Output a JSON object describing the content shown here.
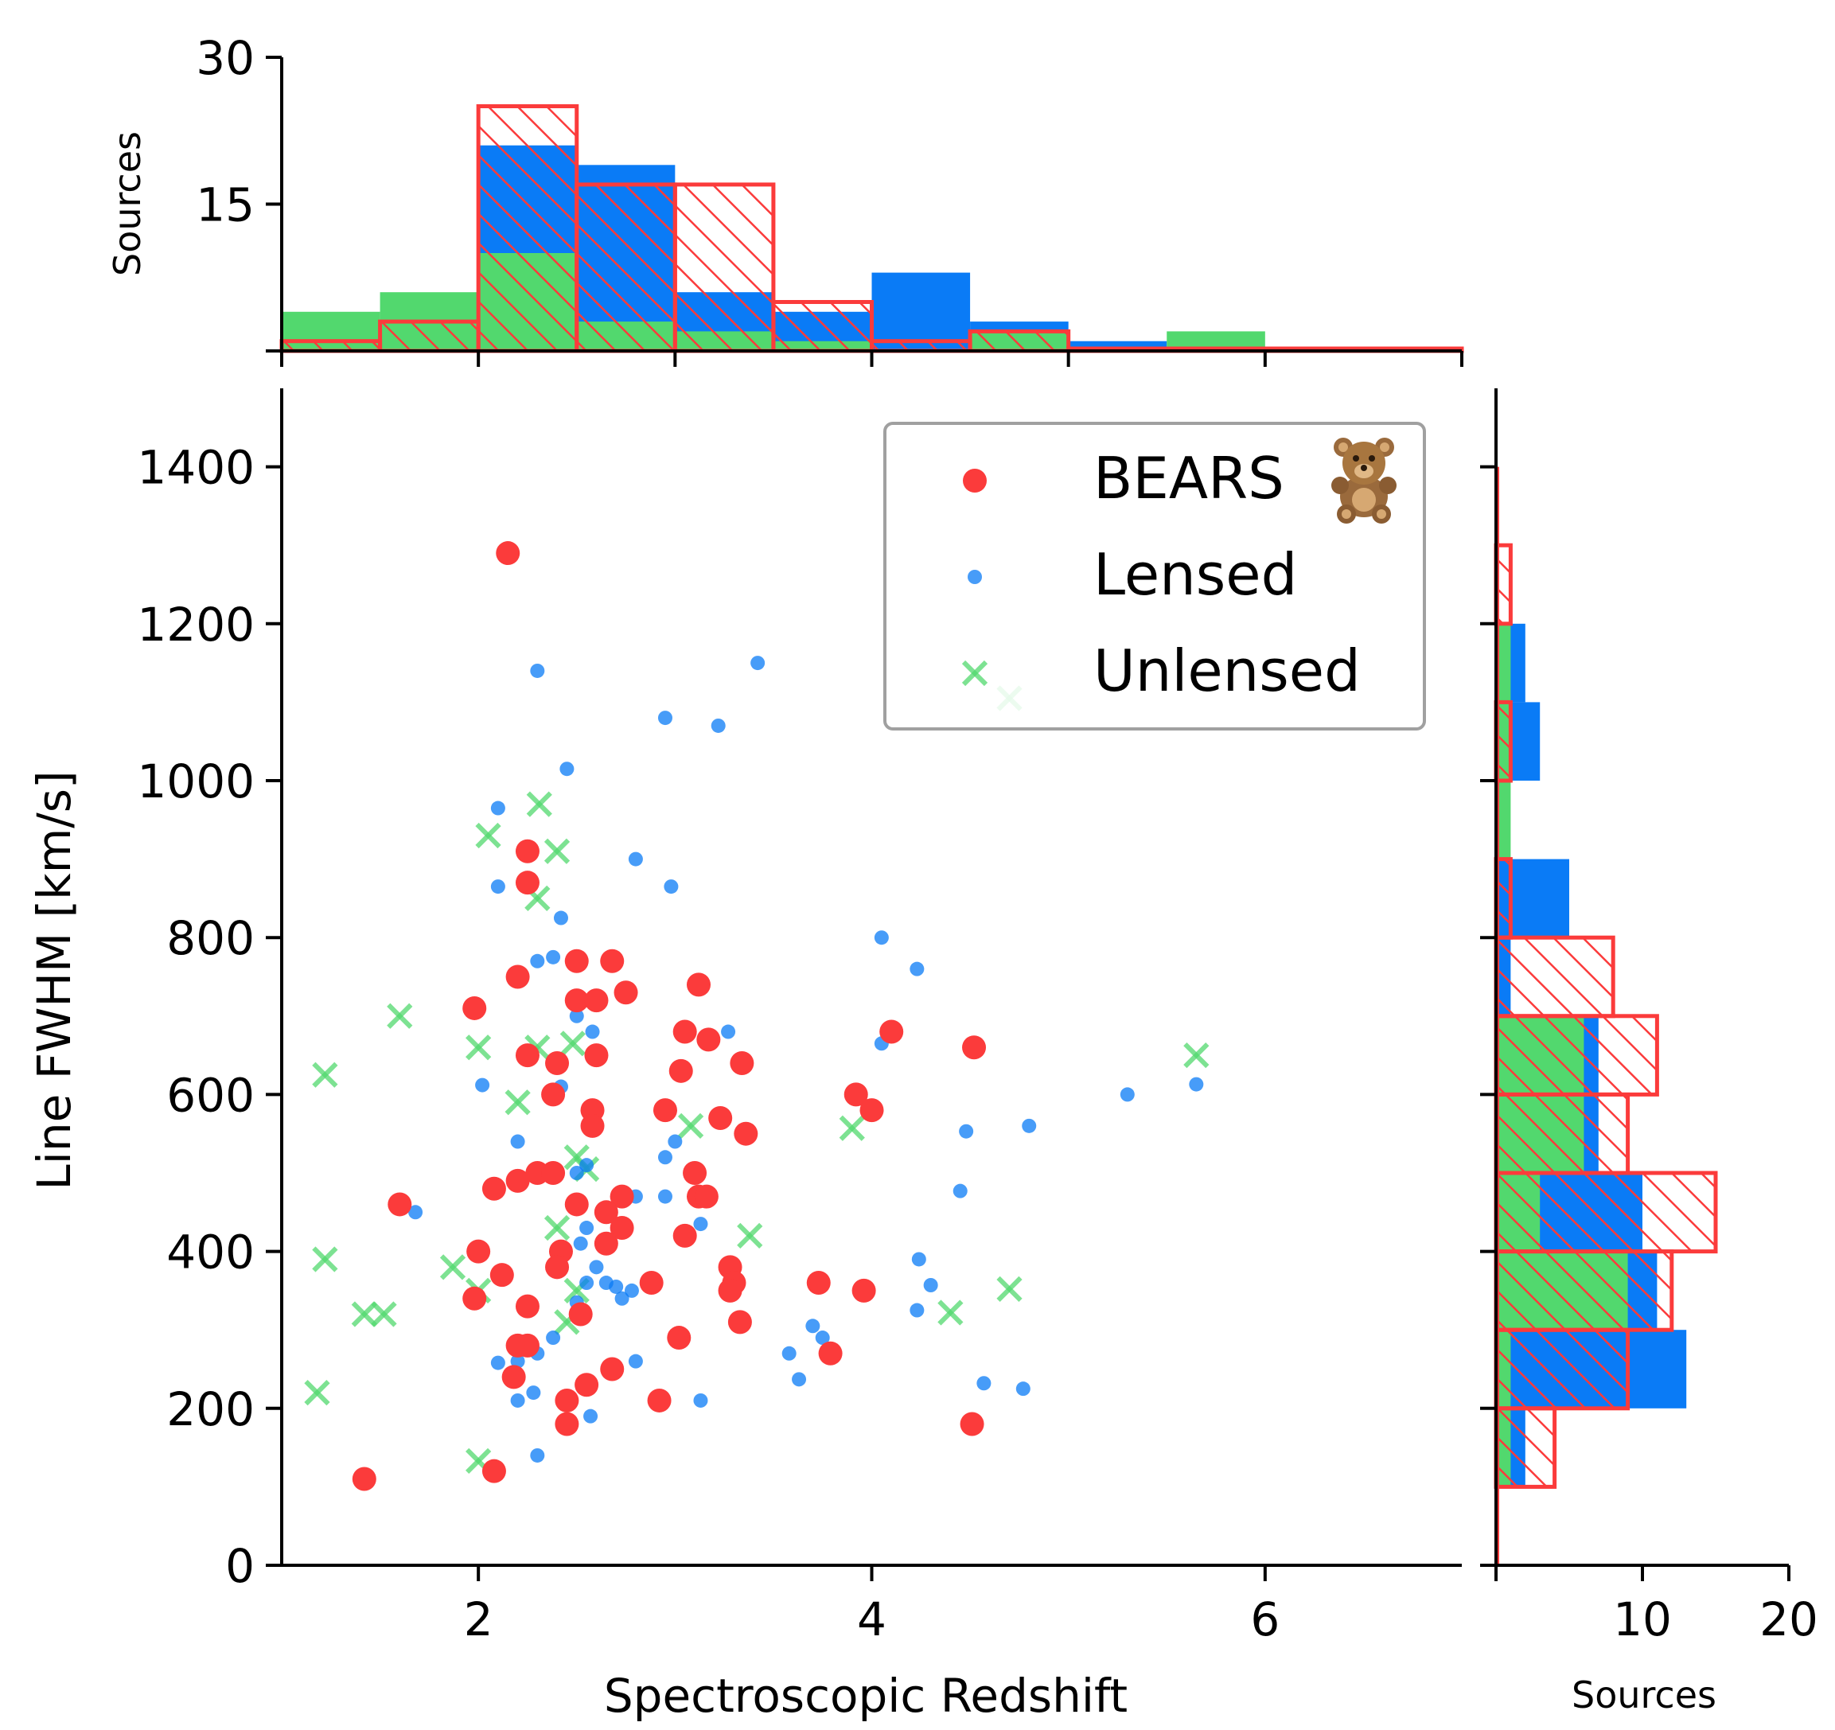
{
  "colors": {
    "bears": "#fb3b3b",
    "lensed": "#0a7bf6",
    "unlensed": "#52d86e",
    "legend_border": "#a0a0a0"
  },
  "chart_data": [
    {
      "id": "scatter",
      "type": "scatter",
      "xlabel": "Spectroscopic Redshift",
      "ylabel": "Line FWHM [km/s]",
      "xlim": [
        1.0,
        7.0
      ],
      "ylim": [
        0,
        1500
      ],
      "xticks": [
        2,
        4,
        6
      ],
      "yticks": [
        0,
        200,
        400,
        600,
        800,
        1000,
        1200,
        1400
      ],
      "legend": {
        "position": "top-right"
      },
      "series": [
        {
          "name": "BEARS",
          "marker": "circle-large",
          "icon": "teddy-bear-icon",
          "points": [
            [
              2.15,
              1290
            ],
            [
              1.42,
              110
            ],
            [
              2.08,
              120
            ],
            [
              2.25,
              910
            ],
            [
              2.25,
              870
            ],
            [
              2.2,
              750
            ],
            [
              1.98,
              710
            ],
            [
              2.08,
              480
            ],
            [
              2.25,
              650
            ],
            [
              2.4,
              640
            ],
            [
              2.38,
              600
            ],
            [
              2.5,
              770
            ],
            [
              2.68,
              770
            ],
            [
              2.5,
              720
            ],
            [
              2.6,
              720
            ],
            [
              2.75,
              730
            ],
            [
              2.6,
              650
            ],
            [
              2.58,
              580
            ],
            [
              2.58,
              560
            ],
            [
              2.3,
              500
            ],
            [
              2.38,
              500
            ],
            [
              2.2,
              490
            ],
            [
              2.5,
              460
            ],
            [
              2.73,
              470
            ],
            [
              2.65,
              450
            ],
            [
              2.42,
              400
            ],
            [
              2.4,
              380
            ],
            [
              2.73,
              430
            ],
            [
              2.65,
              410
            ],
            [
              2.0,
              400
            ],
            [
              2.12,
              370
            ],
            [
              1.98,
              340
            ],
            [
              1.6,
              460
            ],
            [
              2.25,
              330
            ],
            [
              2.2,
              280
            ],
            [
              2.25,
              280
            ],
            [
              2.18,
              240
            ],
            [
              2.45,
              210
            ],
            [
              2.45,
              180
            ],
            [
              2.52,
              320
            ],
            [
              2.55,
              230
            ],
            [
              2.68,
              250
            ],
            [
              2.92,
              210
            ],
            [
              2.88,
              360
            ],
            [
              3.02,
              290
            ],
            [
              3.12,
              740
            ],
            [
              3.05,
              680
            ],
            [
              3.17,
              670
            ],
            [
              3.34,
              640
            ],
            [
              3.03,
              630
            ],
            [
              2.95,
              580
            ],
            [
              3.23,
              570
            ],
            [
              3.36,
              550
            ],
            [
              3.1,
              500
            ],
            [
              3.12,
              470
            ],
            [
              3.16,
              470
            ],
            [
              3.05,
              420
            ],
            [
              3.28,
              380
            ],
            [
              3.3,
              360
            ],
            [
              3.28,
              350
            ],
            [
              3.33,
              310
            ],
            [
              3.73,
              360
            ],
            [
              3.79,
              270
            ],
            [
              3.96,
              350
            ],
            [
              3.92,
              600
            ],
            [
              4.0,
              580
            ],
            [
              4.1,
              680
            ],
            [
              4.52,
              660
            ],
            [
              4.51,
              180
            ]
          ]
        },
        {
          "name": "Lensed",
          "marker": "circle-small",
          "points": [
            [
              2.3,
              1140
            ],
            [
              3.42,
              1150
            ],
            [
              2.95,
              1080
            ],
            [
              3.22,
              1070
            ],
            [
              2.45,
              1015
            ],
            [
              2.1,
              965
            ],
            [
              2.8,
              900
            ],
            [
              2.98,
              865
            ],
            [
              2.1,
              865
            ],
            [
              2.42,
              825
            ],
            [
              2.3,
              770
            ],
            [
              2.38,
              775
            ],
            [
              4.05,
              800
            ],
            [
              4.23,
              760
            ],
            [
              2.5,
              700
            ],
            [
              2.58,
              680
            ],
            [
              3.27,
              680
            ],
            [
              4.05,
              665
            ],
            [
              2.42,
              610
            ],
            [
              2.02,
              612
            ],
            [
              2.2,
              540
            ],
            [
              3.0,
              540
            ],
            [
              2.95,
              520
            ],
            [
              2.55,
              510
            ],
            [
              2.5,
              500
            ],
            [
              2.8,
              470
            ],
            [
              2.95,
              470
            ],
            [
              3.13,
              435
            ],
            [
              2.55,
              430
            ],
            [
              2.52,
              410
            ],
            [
              2.6,
              380
            ],
            [
              2.55,
              360
            ],
            [
              2.65,
              360
            ],
            [
              2.7,
              355
            ],
            [
              2.78,
              350
            ],
            [
              2.73,
              340
            ],
            [
              2.5,
              335
            ],
            [
              2.38,
              290
            ],
            [
              2.3,
              270
            ],
            [
              2.2,
              260
            ],
            [
              2.1,
              258
            ],
            [
              2.28,
              220
            ],
            [
              2.2,
              210
            ],
            [
              2.57,
              190
            ],
            [
              2.3,
              140
            ],
            [
              2.8,
              260
            ],
            [
              3.13,
              210
            ],
            [
              3.58,
              270
            ],
            [
              3.63,
              237
            ],
            [
              3.7,
              305
            ],
            [
              3.75,
              290
            ],
            [
              4.24,
              390
            ],
            [
              4.3,
              357
            ],
            [
              4.23,
              325
            ],
            [
              4.45,
              477
            ],
            [
              4.48,
              553
            ],
            [
              4.8,
              560
            ],
            [
              4.57,
              232
            ],
            [
              4.77,
              225
            ],
            [
              5.3,
              600
            ],
            [
              1.68,
              450
            ],
            [
              5.65,
              613
            ]
          ]
        },
        {
          "name": "Unlensed",
          "marker": "x",
          "points": [
            [
              2.31,
              970
            ],
            [
              2.05,
              930
            ],
            [
              2.4,
              910
            ],
            [
              2.3,
              850
            ],
            [
              1.6,
              700
            ],
            [
              2.0,
              660
            ],
            [
              2.3,
              660
            ],
            [
              2.48,
              665
            ],
            [
              1.22,
              625
            ],
            [
              2.2,
              590
            ],
            [
              3.08,
              560
            ],
            [
              3.9,
              557
            ],
            [
              2.5,
              520
            ],
            [
              2.55,
              505
            ],
            [
              2.4,
              430
            ],
            [
              3.38,
              420
            ],
            [
              1.22,
              390
            ],
            [
              1.87,
              380
            ],
            [
              2.0,
              350
            ],
            [
              2.5,
              350
            ],
            [
              1.42,
              320
            ],
            [
              1.52,
              320
            ],
            [
              2.45,
              310
            ],
            [
              4.4,
              322
            ],
            [
              4.7,
              352
            ],
            [
              1.18,
              220
            ],
            [
              2.0,
              133
            ],
            [
              5.65,
              650
            ],
            [
              4.7,
              1105
            ]
          ]
        }
      ]
    },
    {
      "id": "top-histogram",
      "type": "bar",
      "ylabel": "Sources",
      "xlim": [
        1.0,
        7.0
      ],
      "ylim": [
        0,
        30
      ],
      "yticks": [
        15,
        30
      ],
      "bin_edges": [
        1.0,
        1.5,
        2.0,
        2.5,
        3.0,
        3.5,
        4.0,
        4.5,
        5.0,
        5.5,
        6.0,
        6.5,
        7.0
      ],
      "series": [
        {
          "name": "Unlensed",
          "values": [
            4,
            6,
            10,
            3,
            2,
            1,
            0,
            2,
            0,
            2,
            0,
            0
          ]
        },
        {
          "name": "Lensed",
          "values": [
            0,
            0,
            21,
            19,
            6,
            4,
            8,
            3,
            1,
            0,
            0,
            0
          ]
        },
        {
          "name": "BEARS",
          "values": [
            1,
            3,
            25,
            17,
            17,
            5,
            1,
            2,
            0,
            0,
            0,
            0
          ]
        }
      ]
    },
    {
      "id": "right-histogram",
      "type": "bar",
      "xlabel": "Sources",
      "xlim": [
        0,
        20
      ],
      "ylim": [
        0,
        1500
      ],
      "xticks": [
        10,
        20
      ],
      "bin_edges": [
        100,
        200,
        300,
        400,
        500,
        600,
        700,
        800,
        900,
        1000,
        1100,
        1200,
        1300
      ],
      "series": [
        {
          "name": "Lensed",
          "values": [
            2,
            13,
            11,
            10,
            7,
            7,
            1,
            5,
            0,
            3,
            2,
            0
          ]
        },
        {
          "name": "Unlensed",
          "values": [
            1,
            1,
            9,
            3,
            6,
            6,
            0,
            0,
            1,
            1,
            1,
            0
          ]
        },
        {
          "name": "BEARS",
          "values": [
            4,
            9,
            12,
            15,
            9,
            11,
            8,
            1,
            0,
            1,
            0,
            1
          ]
        }
      ]
    }
  ]
}
